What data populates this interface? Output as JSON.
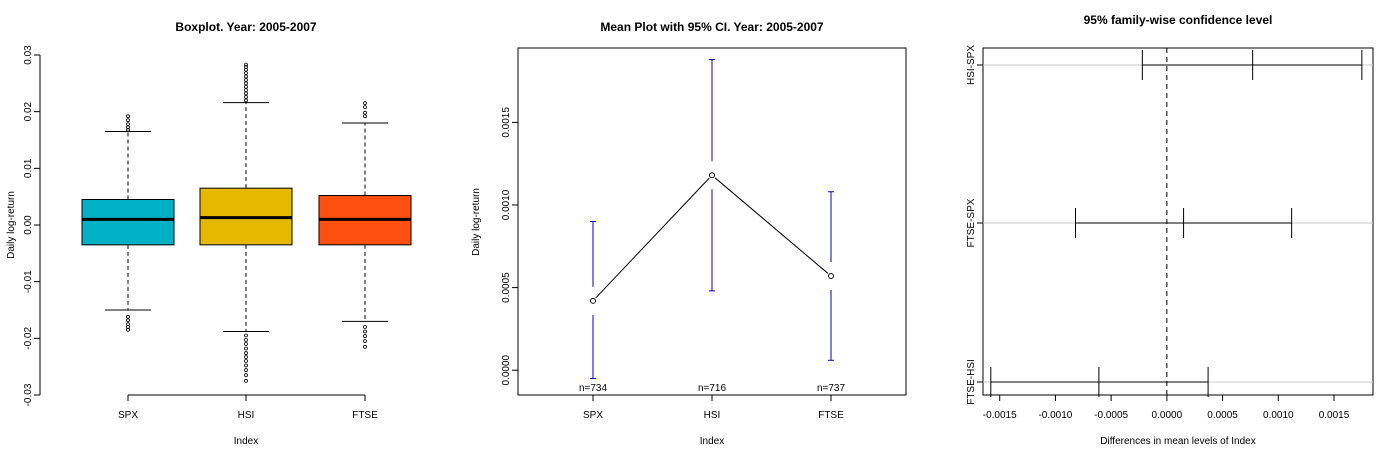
{
  "chart_data": [
    {
      "type": "boxplot",
      "title": "Boxplot. Year: 2005-2007",
      "xlabel": "Index",
      "ylabel": "Daily log-return",
      "ylim": [
        -0.03,
        0.03
      ],
      "yticks": [
        "-0.03",
        "-0.02",
        "-0.01",
        "0.00",
        "0.01",
        "0.02",
        "0.03"
      ],
      "categories": [
        "SPX",
        "HSI",
        "FTSE"
      ],
      "colors": [
        "#00B0C4",
        "#E6B800",
        "#FF5010"
      ],
      "boxes": [
        {
          "name": "SPX",
          "whisker_low": -0.015,
          "q1": -0.0035,
          "median": 0.001,
          "q3": 0.0045,
          "whisker_high": 0.0165,
          "outliers_low": [
            -0.0162,
            -0.0168,
            -0.0175,
            -0.018,
            -0.0185
          ],
          "outliers_high": [
            0.0168,
            0.0172,
            0.0178,
            0.0185,
            0.0192
          ]
        },
        {
          "name": "HSI",
          "whisker_low": -0.0188,
          "q1": -0.0035,
          "median": 0.0013,
          "q3": 0.0065,
          "whisker_high": 0.0216,
          "outliers_low": [
            -0.0195,
            -0.0203,
            -0.021,
            -0.0218,
            -0.0226,
            -0.0233,
            -0.024,
            -0.0248,
            -0.0256,
            -0.0265,
            -0.0275
          ],
          "outliers_high": [
            0.022,
            0.0226,
            0.0232,
            0.0238,
            0.0244,
            0.025,
            0.0256,
            0.0262,
            0.0268,
            0.0274,
            0.0279,
            0.0283
          ]
        },
        {
          "name": "FTSE",
          "whisker_low": -0.017,
          "q1": -0.0035,
          "median": 0.001,
          "q3": 0.0052,
          "whisker_high": 0.018,
          "outliers_low": [
            -0.018,
            -0.0188,
            -0.0196,
            -0.0205,
            -0.0215
          ],
          "outliers_high": [
            0.0192,
            0.0198,
            0.0208,
            0.0215
          ]
        }
      ]
    },
    {
      "type": "line",
      "title": "Mean Plot with 95% CI. Year: 2005-2007",
      "xlabel": "Index",
      "ylabel": "Daily log-return",
      "yticks": [
        "0.0000",
        "0.0005",
        "0.0010",
        "0.0015"
      ],
      "ylim": [
        -0.00015,
        0.00195
      ],
      "categories": [
        "SPX",
        "HSI",
        "FTSE"
      ],
      "means": [
        0.00042,
        0.00118,
        0.00057
      ],
      "ci_low": [
        -5e-05,
        0.00048,
        6e-05
      ],
      "ci_high": [
        0.0009,
        0.00188,
        0.00108
      ],
      "n_labels": [
        "n=734",
        "n=716",
        "n=737"
      ],
      "ci_color": "#0000CC"
    },
    {
      "type": "interval",
      "title": "95% family-wise confidence level",
      "xlabel": "Differences in mean levels of Index",
      "xlim": [
        -0.00165,
        0.00185
      ],
      "xticks": [
        "-0.0015",
        "-0.0010",
        "-0.0005",
        "0.0000",
        "0.0005",
        "0.0010",
        "0.0015"
      ],
      "comparisons": [
        {
          "label": "HSI-SPX",
          "lwr": -0.00022,
          "diff": 0.00077,
          "upr": 0.00175
        },
        {
          "label": "FTSE-SPX",
          "lwr": -0.00082,
          "diff": 0.00015,
          "upr": 0.00112
        },
        {
          "label": "FTSE-HSI",
          "lwr": -0.00158,
          "diff": -0.00061,
          "upr": 0.00037
        }
      ]
    }
  ]
}
